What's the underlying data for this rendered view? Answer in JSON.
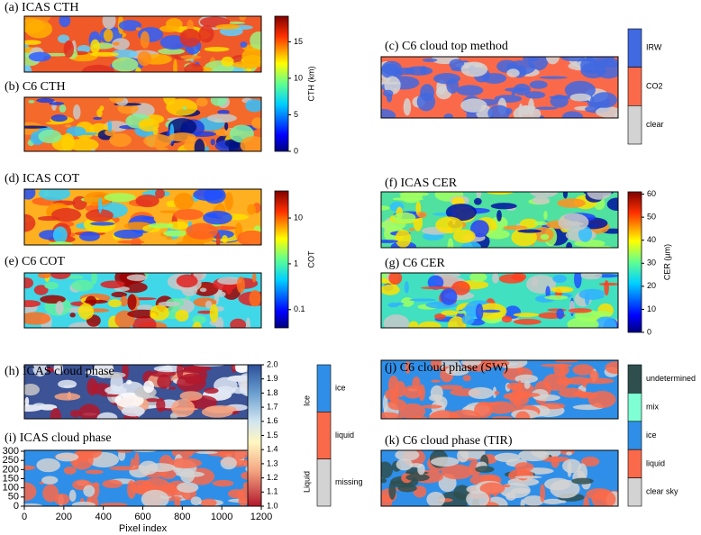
{
  "panels": [
    {
      "label": "(a) ICAS CTH"
    },
    {
      "label": "(b) C6 CTH"
    },
    {
      "label": "(c) C6 cloud top method"
    },
    {
      "label": "(d) ICAS COT"
    },
    {
      "label": "(e) C6 COT"
    },
    {
      "label": "(f) ICAS CER"
    },
    {
      "label": "(g) C6 CER"
    },
    {
      "label": "(h) ICAS cloud phase"
    },
    {
      "label": "(i) ICAS cloud phase"
    },
    {
      "label": "(j) C6 cloud phase (SW)"
    },
    {
      "label": "(k) C6 cloud phase (TIR)"
    }
  ],
  "colorbars": {
    "cth": {
      "label": "CTH (km)",
      "lim": [
        0,
        18.5
      ],
      "ticks": [
        0,
        5,
        10,
        15
      ]
    },
    "cot": {
      "label": "COT",
      "log": true,
      "lim": [
        0.04,
        39
      ],
      "ticks": [
        0.1,
        1,
        10
      ]
    },
    "cer": {
      "label": "CER (µm)",
      "lim": [
        0,
        61
      ],
      "ticks": [
        0,
        10,
        20,
        30,
        40,
        50,
        60
      ]
    },
    "phase": {
      "lim": [
        1,
        2
      ],
      "ticks": [
        {
          "value": 1,
          "label": "1.0"
        },
        1.1,
        1.2,
        1.3,
        1.4,
        1.5,
        1.6,
        1.7,
        1.8,
        1.9,
        {
          "value": 2,
          "label": "2.0"
        }
      ],
      "range_labels": [
        "Liquid",
        "Ice"
      ]
    }
  },
  "legends": {
    "cloud_top_method": [
      {
        "label": "IRW",
        "color": "#4169e1"
      },
      {
        "label": "CO2",
        "color": "#fa6a4a"
      },
      {
        "label": "clear",
        "color": "#d3d3d3"
      }
    ],
    "icas_phase": [
      {
        "label": "ice",
        "color": "#2f8fe8"
      },
      {
        "label": "liquid",
        "color": "#fa6a4a"
      },
      {
        "label": "missing",
        "color": "#d3d3d3"
      }
    ],
    "c6_phase": [
      {
        "label": "undetermined",
        "color": "#2f4f4f"
      },
      {
        "label": "mix",
        "color": "#7fffd4"
      },
      {
        "label": "ice",
        "color": "#2f8fe8"
      },
      {
        "label": "liquid",
        "color": "#fa6a4a"
      },
      {
        "label": "clear sky",
        "color": "#d3d3d3"
      }
    ]
  },
  "axes": {
    "x_label": "Pixel index",
    "xlim": [
      0,
      1200
    ],
    "xticks": [
      0,
      200,
      400,
      600,
      800,
      1000,
      1200
    ],
    "ylim": [
      0,
      305
    ],
    "yticks": [
      0,
      50,
      100,
      150,
      200,
      250,
      300
    ]
  }
}
